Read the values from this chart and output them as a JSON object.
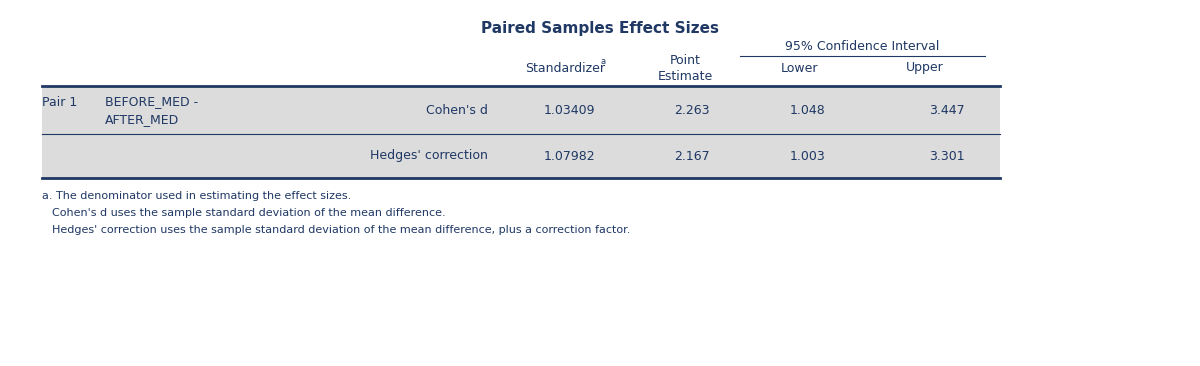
{
  "title": "Paired Samples Effect Sizes",
  "title_fontsize": 11,
  "header_color": "#1F3864",
  "data_color": "#1F3864",
  "bg_color": "#FFFFFF",
  "row_bg": "#DCDCDC",
  "col_header_95ci": "95% Confidence Interval",
  "col_header_point": "Point\nEstimate",
  "col_header_standardizer": "Standardizer",
  "standardizer_superscript": "a",
  "col_header_lower": "Lower",
  "col_header_upper": "Upper",
  "pair_label": "Pair 1",
  "pair_sub_label1": "BEFORE_MED -",
  "pair_sub_label2": "AFTER_MED",
  "row1_method": "Cohen's d",
  "row1_standardizer": "1.03409",
  "row1_estimate": "2.263",
  "row1_lower": "1.048",
  "row1_upper": "3.447",
  "row2_method": "Hedges' correction",
  "row2_standardizer": "1.07982",
  "row2_estimate": "2.167",
  "row2_lower": "1.003",
  "row2_upper": "3.301",
  "footnote_a": "a. The denominator used in estimating the effect sizes.",
  "footnote_b": "   Cohen's d uses the sample standard deviation of the mean difference.",
  "footnote_c": "   Hedges' correction uses the sample standard deviation of the mean difference, plus a correction factor.",
  "font_family": "DejaVu Sans",
  "cell_fontsize": 9,
  "footnote_fontsize": 8
}
